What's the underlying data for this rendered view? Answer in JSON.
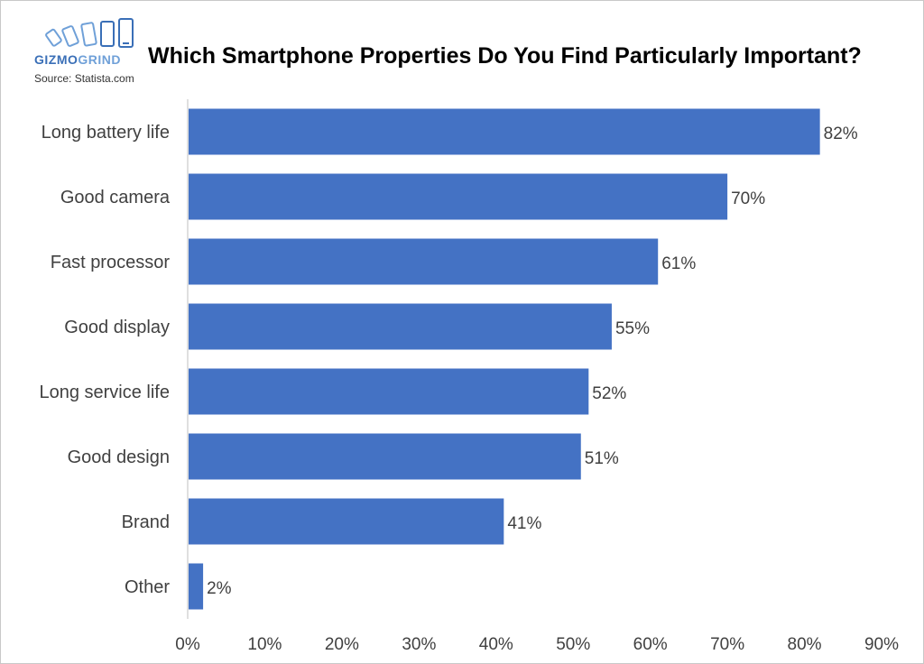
{
  "logo": {
    "brand_part1": "GIZMO",
    "brand_part2": "GRIND",
    "source": "Source: Statista.com"
  },
  "colors": {
    "bar": "#4472c4",
    "axis": "#bfbfbf",
    "text": "#404040",
    "logo_dark": "#3a6fb7",
    "logo_light": "#6fa0d8"
  },
  "chart_data": {
    "type": "bar",
    "orientation": "horizontal",
    "title": "Which Smartphone Properties Do You Find Particularly Important?",
    "categories": [
      "Long battery life",
      "Good camera",
      "Fast processor",
      "Good display",
      "Long service life",
      "Good design",
      "Brand",
      "Other"
    ],
    "values": [
      82,
      70,
      61,
      55,
      52,
      51,
      41,
      2
    ],
    "value_labels": [
      "82%",
      "70%",
      "61%",
      "55%",
      "52%",
      "51%",
      "41%",
      "2%"
    ],
    "xlim": [
      0,
      90
    ],
    "x_ticks": [
      "0%",
      "10%",
      "20%",
      "30%",
      "40%",
      "50%",
      "60%",
      "70%",
      "80%",
      "90%"
    ],
    "grid": false,
    "legend": "none"
  }
}
